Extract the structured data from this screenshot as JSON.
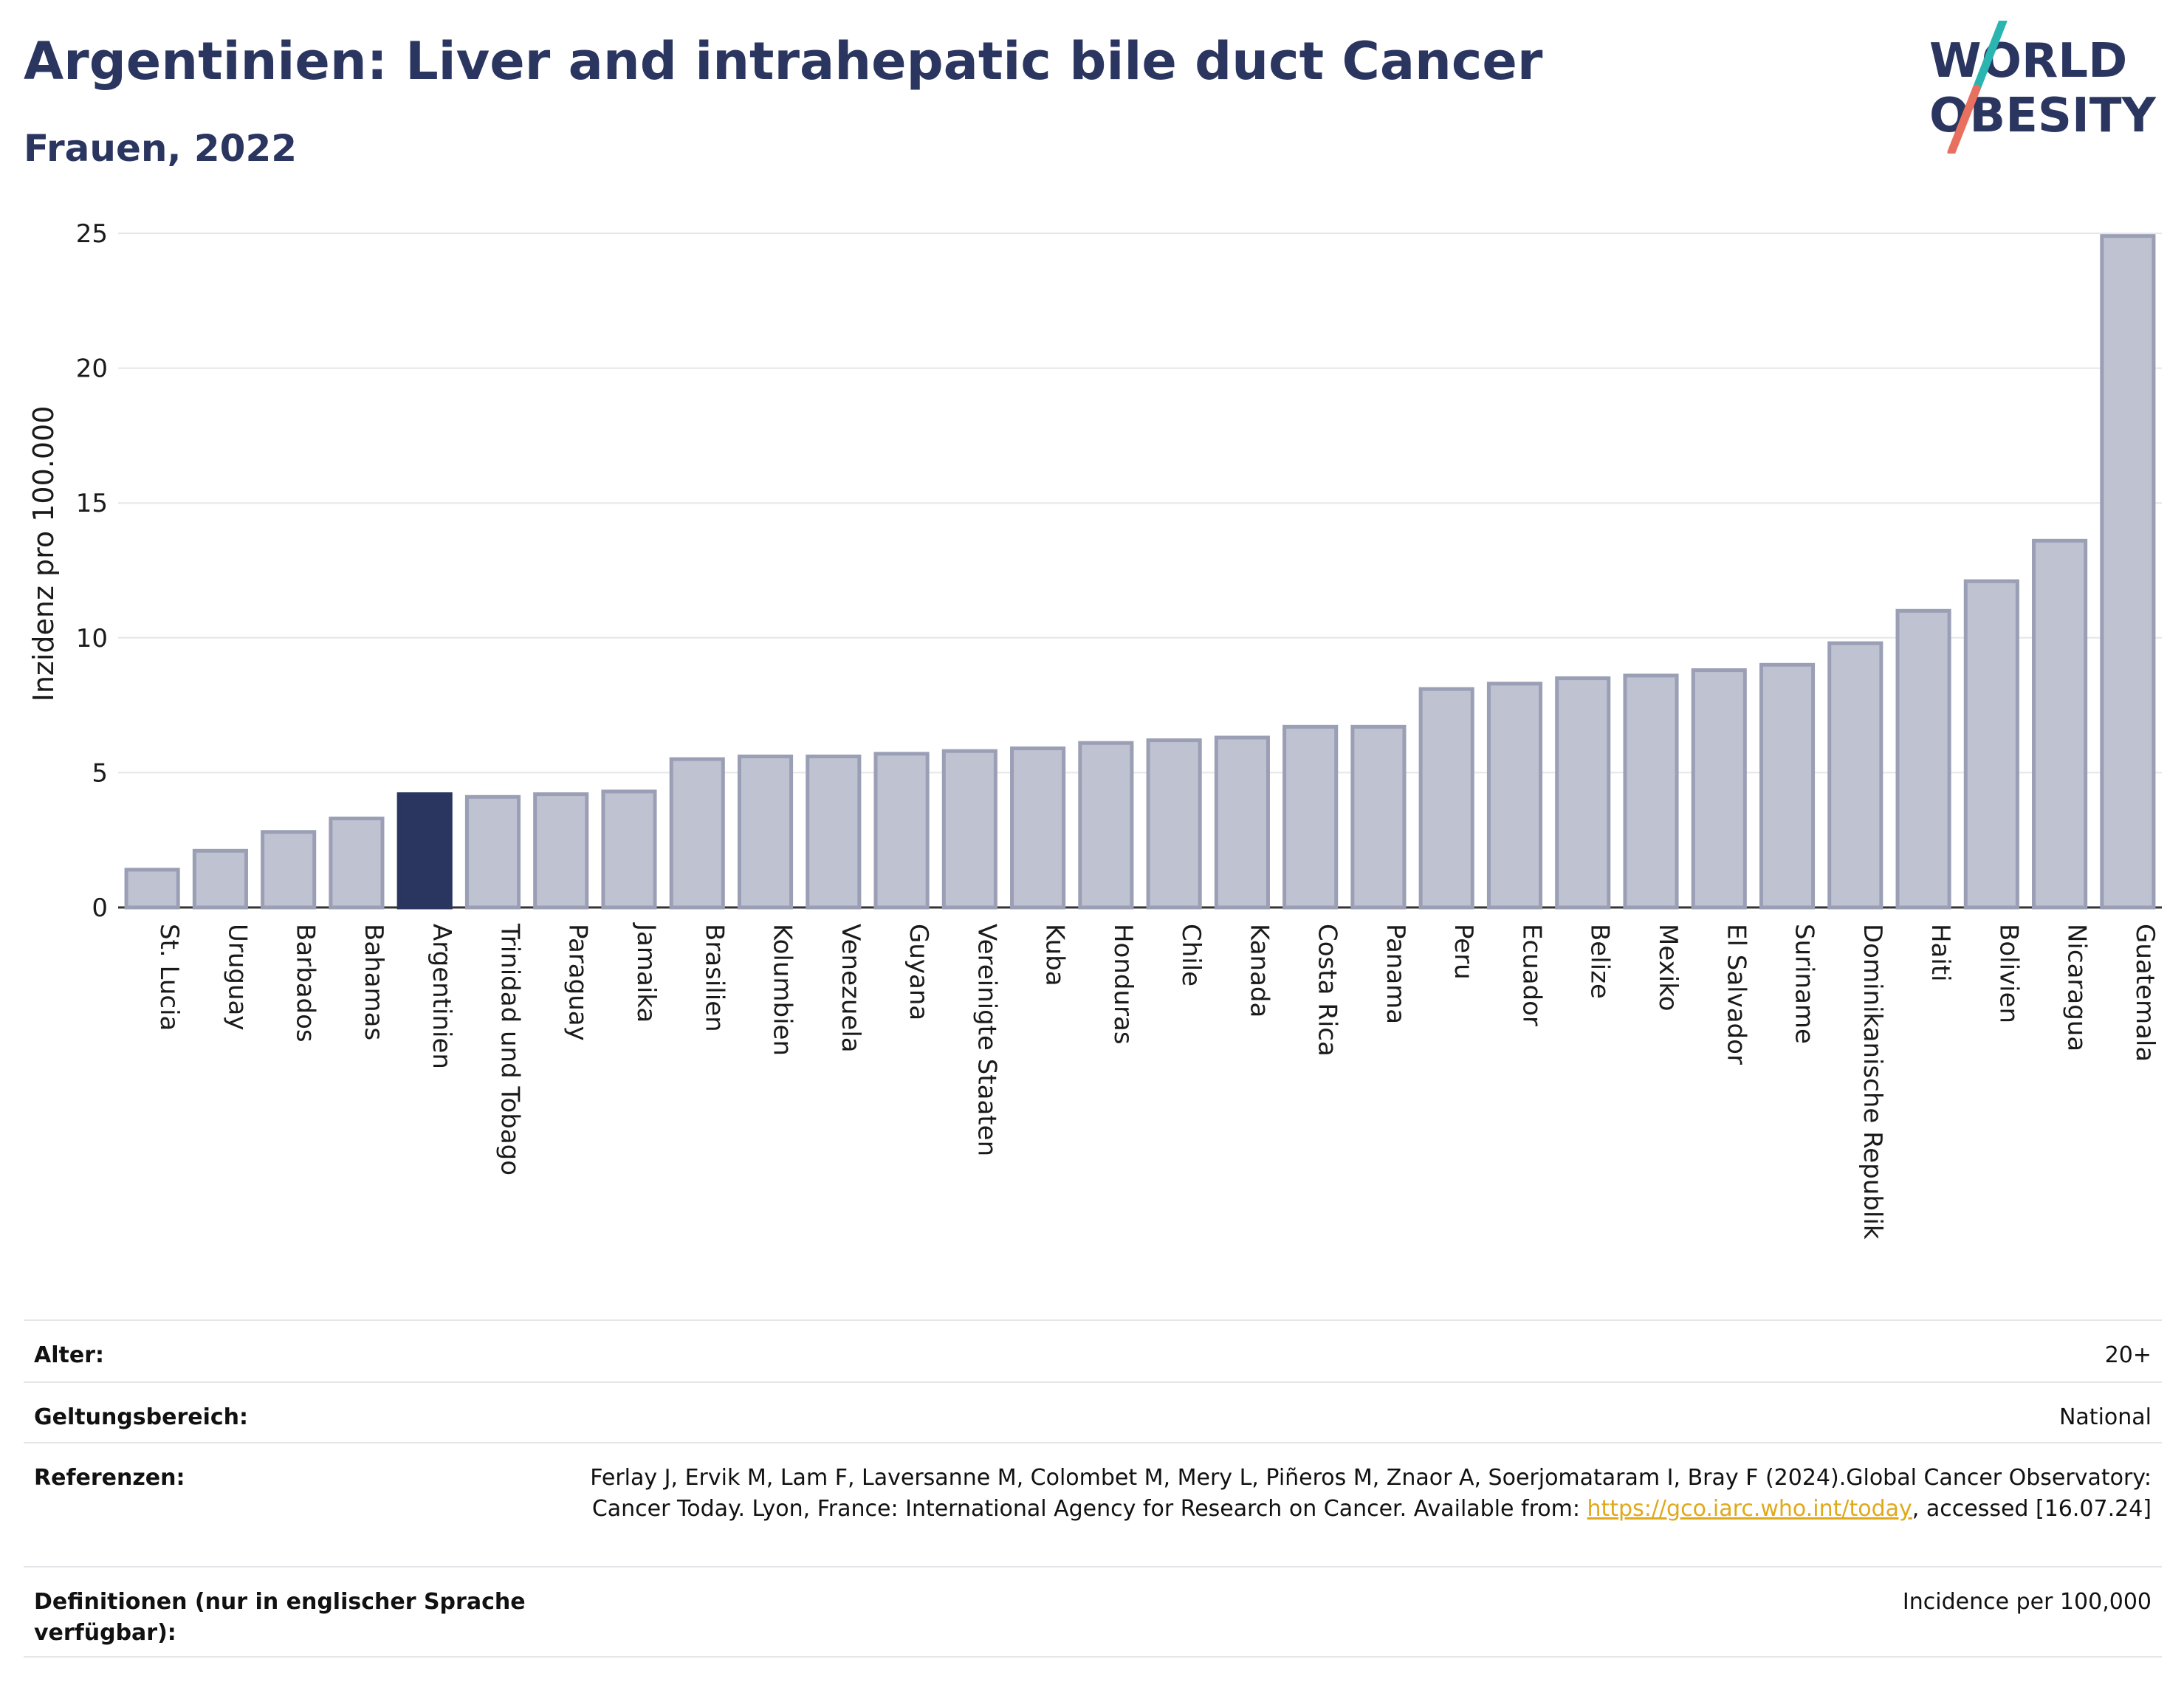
{
  "header": {
    "title": "Argentinien: Liver and intrahepatic bile duct Cancer",
    "subtitle": "Frauen, 2022"
  },
  "logo": {
    "line1": "WORLD",
    "line2": "OBESITY",
    "colors": {
      "text": "#2a3560",
      "slash_top": "#2bb5b0",
      "slash_bottom": "#e8705e"
    }
  },
  "colors": {
    "bar": "#bfc2d0",
    "bar_border": "#9a9fb5",
    "highlight": "#2a3560",
    "grid": "#e6e6ea",
    "axis": "#333333"
  },
  "chart_data": {
    "type": "bar",
    "ylabel": "Inzidenz pro 100.000",
    "ylim": [
      0,
      25
    ],
    "yticks": [
      0,
      5,
      10,
      15,
      20,
      25
    ],
    "grid": true,
    "highlight": "Argentinien",
    "categories": [
      "St. Lucia",
      "Uruguay",
      "Barbados",
      "Bahamas",
      "Argentinien",
      "Trinidad und Tobago",
      "Paraguay",
      "Jamaika",
      "Brasilien",
      "Kolumbien",
      "Venezuela",
      "Guyana",
      "Vereinigte Staaten",
      "Kuba",
      "Honduras",
      "Chile",
      "Kanada",
      "Costa Rica",
      "Panama",
      "Peru",
      "Ecuador",
      "Belize",
      "Mexiko",
      "El Salvador",
      "Suriname",
      "Dominikanische Republik",
      "Haiti",
      "Bolivien",
      "Nicaragua",
      "Guatemala"
    ],
    "values": [
      1.4,
      2.1,
      2.8,
      3.3,
      4.2,
      4.1,
      4.2,
      4.3,
      5.5,
      5.6,
      5.6,
      5.7,
      5.8,
      5.9,
      6.1,
      6.2,
      6.3,
      6.7,
      6.7,
      8.1,
      8.3,
      8.5,
      8.6,
      8.8,
      9.0,
      9.8,
      11.0,
      12.1,
      13.6,
      24.9
    ]
  },
  "meta": {
    "rows": [
      {
        "key": "Alter:",
        "value": "20+"
      },
      {
        "key": "Geltungsbereich:",
        "value": "National"
      },
      {
        "key": "Referenzen:",
        "value_pre": "Ferlay J, Ervik M, Lam F, Laversanne M, Colombet M, Mery L, Piñeros M, Znaor A, Soerjomataram I, Bray F (2024).Global Cancer Observatory: Cancer Today. Lyon, France: International Agency for Research on Cancer. Available from: ",
        "link": "https://gco.iarc.who.int/today",
        "value_post": ", accessed [16.07.24]"
      },
      {
        "key": "Definitionen (nur in englischer Sprache verfügbar):",
        "value": "Incidence per 100,000"
      }
    ]
  }
}
